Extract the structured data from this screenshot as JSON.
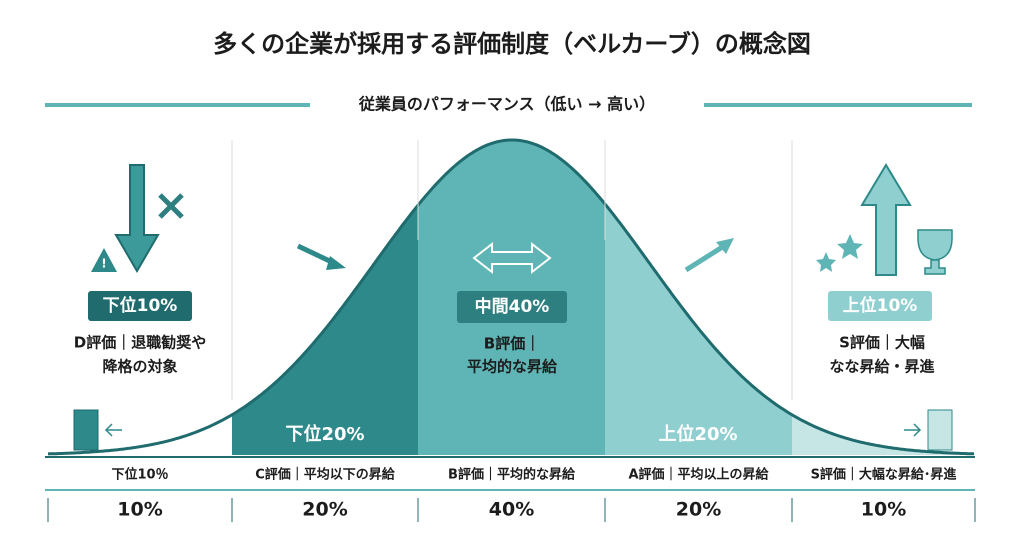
{
  "header": {
    "title": "多くの企業が採用する評価制度（ベルカーブ）の概念図",
    "subtitle": "従業員のパフォーマンス（低い → 高い）"
  },
  "panels": [
    {
      "badge": "下位10%",
      "lines": [
        "D評価｜退職勧奨や",
        "降格の対象"
      ]
    },
    {
      "badge": "中間40%",
      "lines": [
        "B評価｜",
        "平均的な昇給"
      ]
    },
    {
      "badge": "上位10%",
      "lines": [
        "S評価｜大幅",
        "なな昇給・昇進"
      ]
    }
  ],
  "curve_labels": [
    "下位20%",
    "上位20%"
  ],
  "table": {
    "labels": [
      "下位10％",
      "C評価｜平均以下の昇給",
      "B評価｜平均的な昇給",
      "A評価｜平均以上の昇給",
      "S評価｜大幅な昇給･昇進"
    ],
    "percentages": [
      "10%",
      "20%",
      "40%",
      "20%",
      "10%"
    ]
  }
}
